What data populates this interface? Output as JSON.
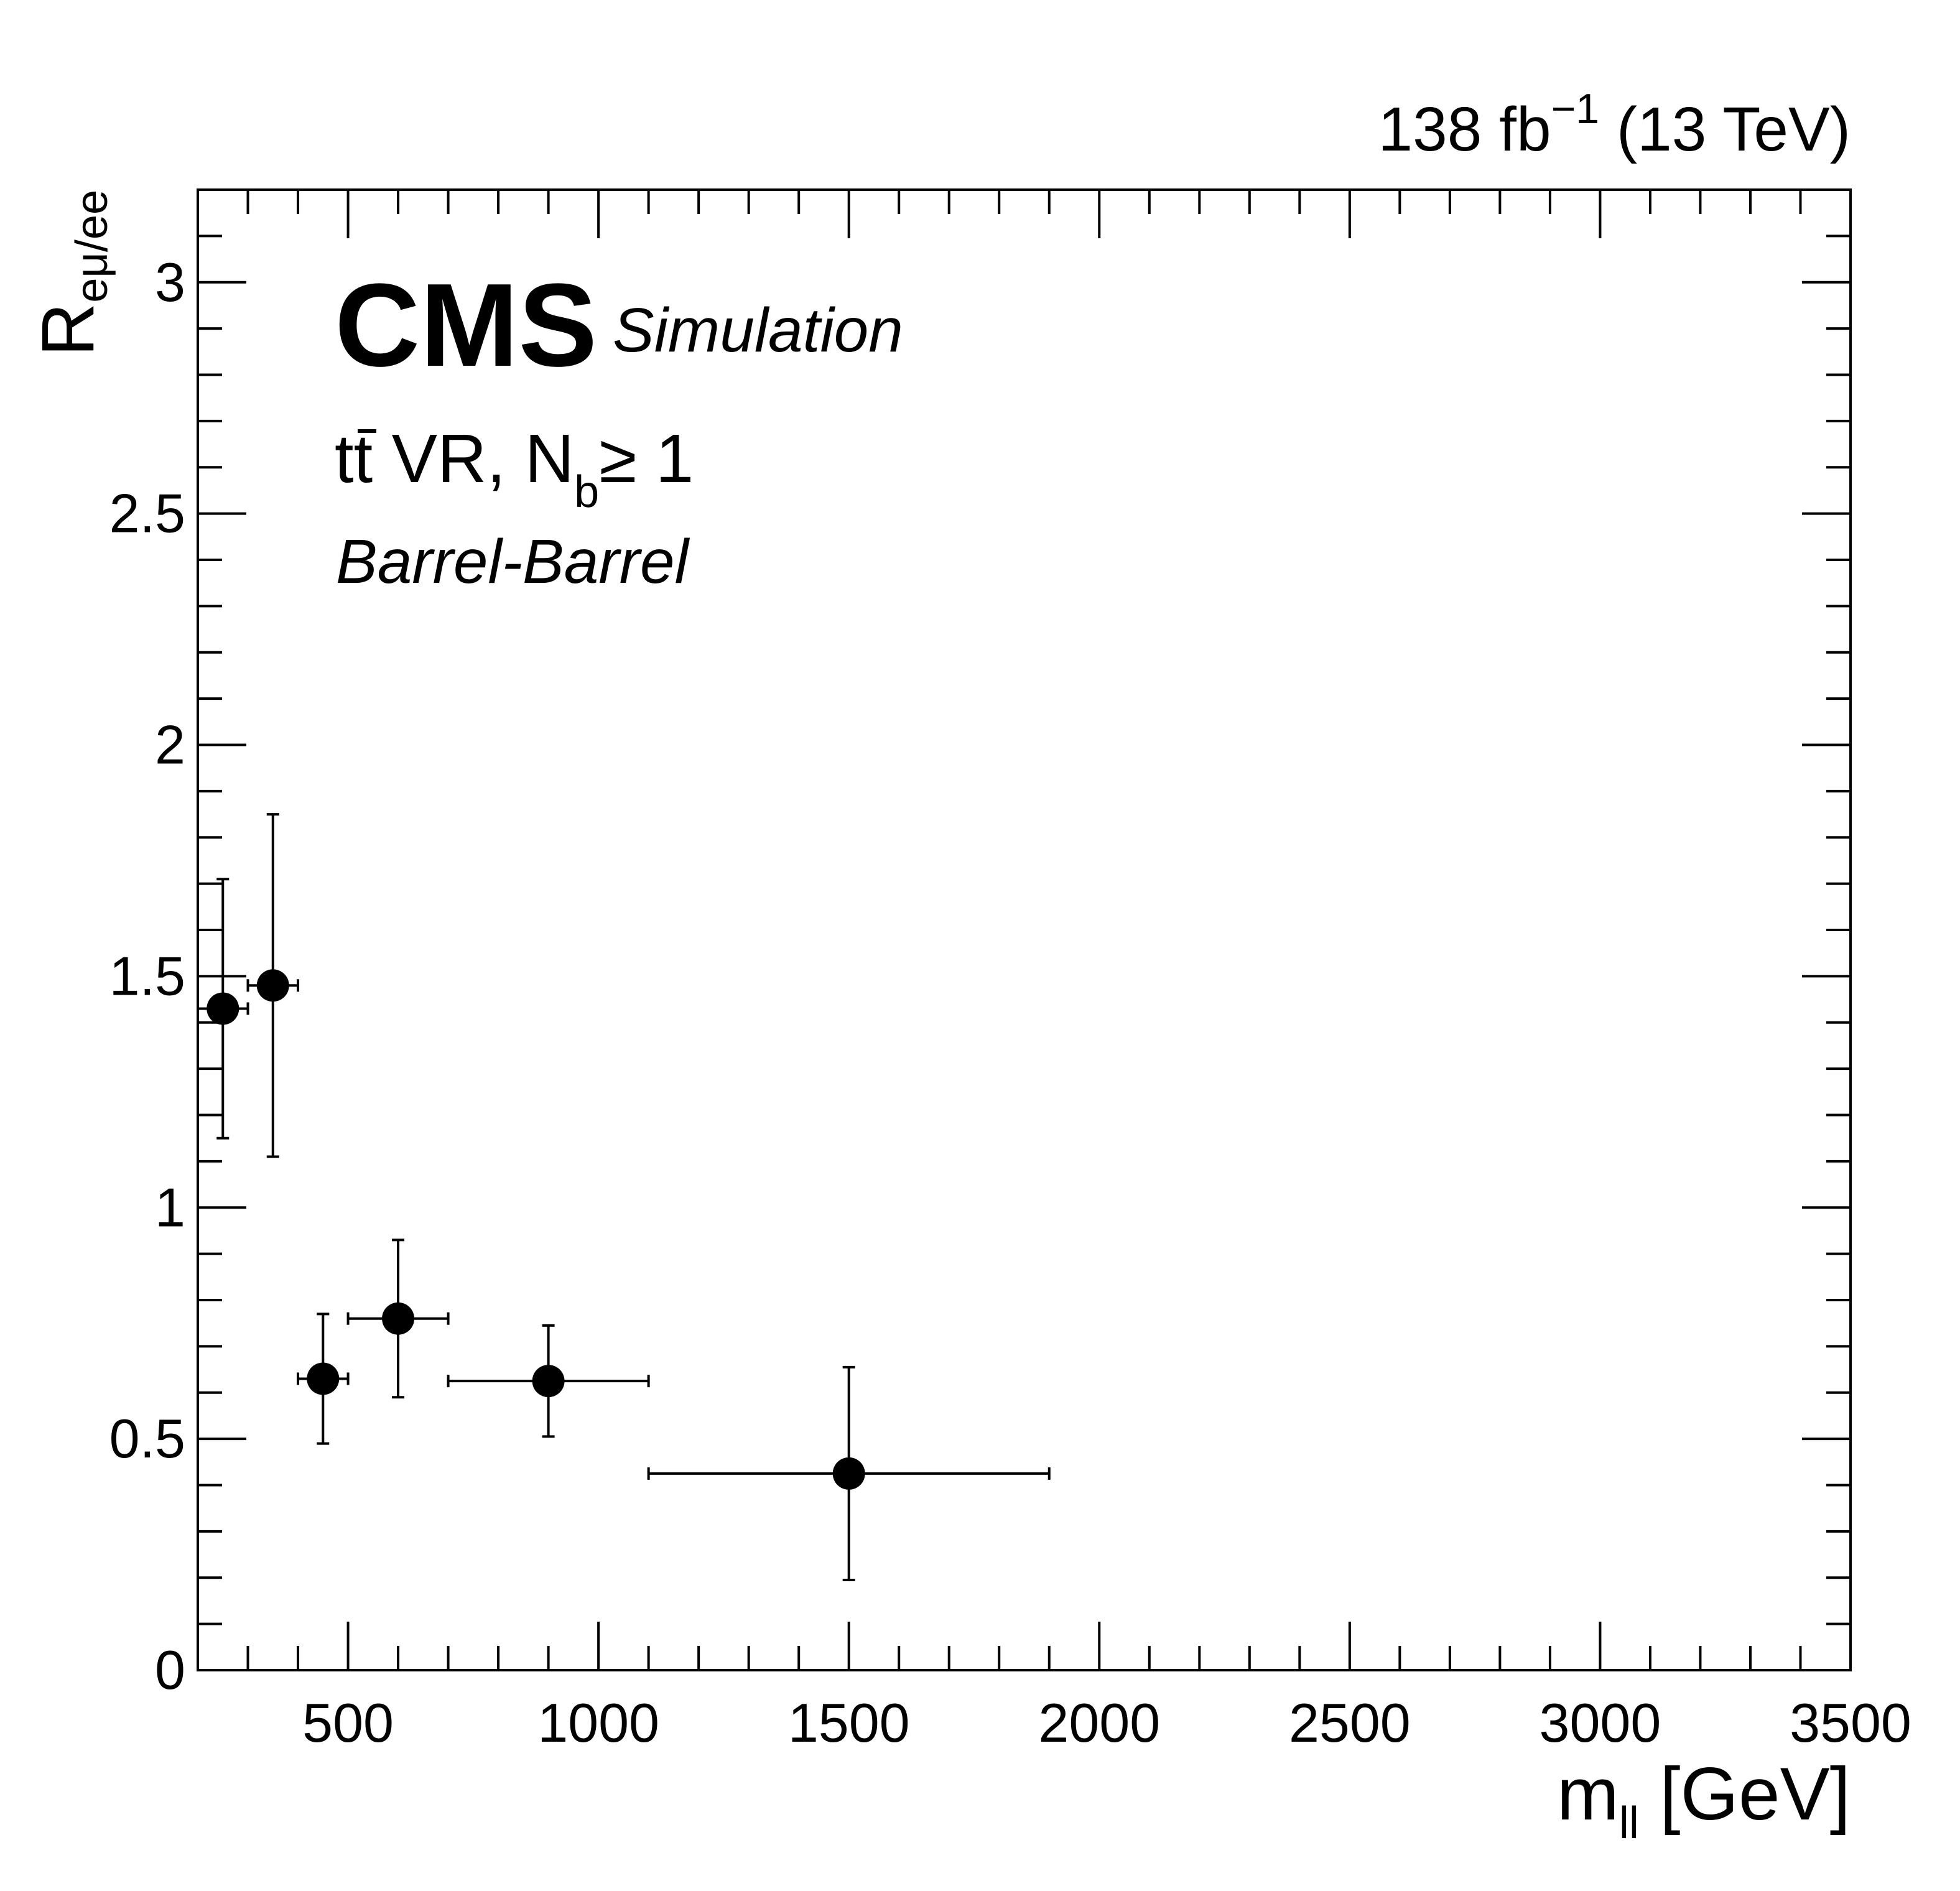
{
  "chart_data": {
    "type": "scatter",
    "lumi_text": "138 fb",
    "lumi_exp": "−1",
    "lumi_energy": " (13 TeV)",
    "cms_label": "CMS",
    "cms_extra": "Simulation",
    "region_t": "t",
    "region_tbar": "t",
    "region_rest": " VR, N",
    "region_sub": "b",
    "region_cut": "≥ 1",
    "category_label": "Barrel-Barrel",
    "xlabel": "m",
    "xlabel_sub": "ll",
    "xlabel_unit": " [GeV]",
    "ylabel": "R",
    "ylabel_sub": "eμ/ee",
    "xlim": [
      200,
      3500
    ],
    "ylim": [
      0,
      3.2
    ],
    "x_major_ticks": [
      500,
      1000,
      1500,
      2000,
      2500,
      3000,
      3500
    ],
    "x_tick_labels": [
      "500",
      "1000",
      "1500",
      "2000",
      "2500",
      "3000",
      "3500"
    ],
    "y_major_ticks": [
      0,
      0.5,
      1,
      1.5,
      2,
      2.5,
      3
    ],
    "y_tick_labels": [
      "0",
      "0.5",
      "1",
      "1.5",
      "2",
      "2.5",
      "3"
    ],
    "grid": false,
    "legend": "none",
    "colors": {
      "marker": "#000000",
      "axes": "#000000",
      "background": "#ffffff"
    },
    "points": [
      {
        "x": 250,
        "xlo": 200,
        "xhi": 300,
        "y": 1.43,
        "ylo": 1.15,
        "yhi": 1.71
      },
      {
        "x": 350,
        "xlo": 300,
        "xhi": 400,
        "y": 1.48,
        "ylo": 1.11,
        "yhi": 1.85
      },
      {
        "x": 450,
        "xlo": 400,
        "xhi": 500,
        "y": 0.63,
        "ylo": 0.49,
        "yhi": 0.77
      },
      {
        "x": 600,
        "xlo": 500,
        "xhi": 700,
        "y": 0.76,
        "ylo": 0.59,
        "yhi": 0.93
      },
      {
        "x": 900,
        "xlo": 700,
        "xhi": 1100,
        "y": 0.625,
        "ylo": 0.505,
        "yhi": 0.745
      },
      {
        "x": 1500,
        "xlo": 1100,
        "xhi": 1900,
        "y": 0.425,
        "ylo": 0.195,
        "yhi": 0.655
      }
    ]
  }
}
